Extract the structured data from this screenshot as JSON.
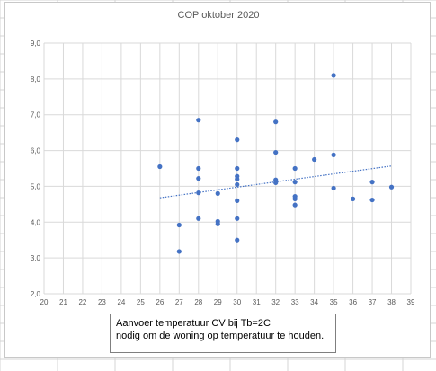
{
  "chart_data": {
    "type": "scatter",
    "title": "COP oktober 2020",
    "xlabel": "",
    "ylabel": "",
    "xlim": [
      20,
      39
    ],
    "ylim": [
      2.0,
      9.0
    ],
    "x_ticks": [
      20,
      21,
      22,
      23,
      24,
      25,
      26,
      27,
      28,
      29,
      30,
      31,
      32,
      33,
      34,
      35,
      36,
      37,
      38,
      39
    ],
    "y_ticks": [
      "2,0",
      "3,0",
      "4,0",
      "5,0",
      "6,0",
      "7,0",
      "8,0",
      "9,0"
    ],
    "grid": true,
    "legend": "none",
    "series": [
      {
        "color": "#4472c4",
        "points": [
          [
            26,
            5.55
          ],
          [
            27,
            3.92
          ],
          [
            27,
            3.18
          ],
          [
            28,
            6.85
          ],
          [
            28,
            5.5
          ],
          [
            28,
            5.22
          ],
          [
            28,
            4.82
          ],
          [
            28,
            4.1
          ],
          [
            29,
            4.8
          ],
          [
            29,
            4.02
          ],
          [
            29,
            3.95
          ],
          [
            30,
            6.3
          ],
          [
            30,
            5.5
          ],
          [
            30,
            5.28
          ],
          [
            30,
            5.2
          ],
          [
            30,
            5.05
          ],
          [
            30,
            4.6
          ],
          [
            30,
            4.1
          ],
          [
            30,
            3.5
          ],
          [
            32,
            6.8
          ],
          [
            32,
            5.95
          ],
          [
            32,
            5.18
          ],
          [
            32,
            5.1
          ],
          [
            33,
            5.5
          ],
          [
            33,
            5.12
          ],
          [
            33,
            4.72
          ],
          [
            33,
            4.65
          ],
          [
            33,
            4.48
          ],
          [
            34,
            5.75
          ],
          [
            35,
            8.1
          ],
          [
            35,
            5.88
          ],
          [
            35,
            4.95
          ],
          [
            36,
            4.65
          ],
          [
            37,
            5.12
          ],
          [
            37,
            4.62
          ],
          [
            38,
            4.98
          ]
        ]
      }
    ],
    "trendline": {
      "type": "linear",
      "style": "dotted",
      "color": "#4472c4",
      "x": [
        26,
        38
      ],
      "y": [
        4.68,
        5.57
      ]
    }
  },
  "annotation": {
    "line1": "Aanvoer temperatuur CV bij Tb=2C",
    "line2": "nodig om de woning op temperatuur te houden."
  }
}
